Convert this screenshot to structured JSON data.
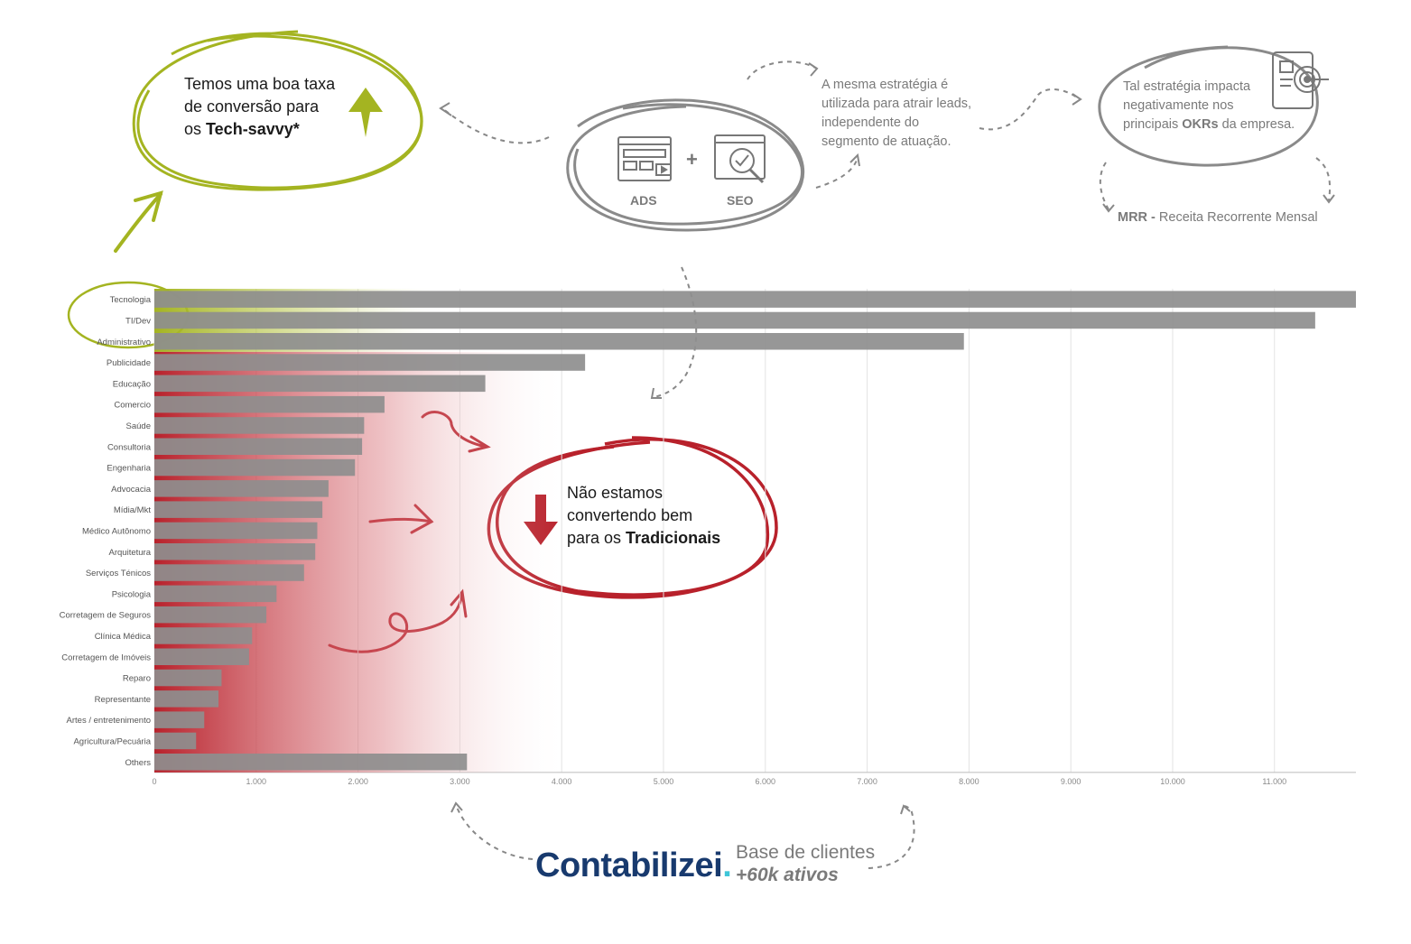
{
  "annotations": {
    "tech_note": {
      "line1": "Temos uma boa taxa",
      "line2": "de conversão para",
      "line3_prefix": "os ",
      "line3_bold": "Tech-savvy*"
    },
    "trad_note": {
      "line1": "Não estamos",
      "line2": "convertendo bem",
      "line3_prefix": "para os ",
      "line3_bold": "Tradicionais"
    },
    "strategy_note": {
      "line1": "A mesma estratégia é",
      "line2": "utilizada para atrair leads,",
      "line3": "independente do",
      "line4": "segmento de atuação."
    },
    "okr_note": {
      "line1": "Tal estratégia impacta",
      "line2": "negativamente nos",
      "line3_prefix": "principais ",
      "line3_bold": "OKRs",
      "line3_suffix": " da empresa."
    },
    "mrr": {
      "bold": "MRR -",
      "text": " Receita Recorrente Mensal"
    },
    "ads_label": "ADS",
    "seo_label": "SEO",
    "plus": "+"
  },
  "brand": {
    "name": "Contabilizei",
    "dot": ".",
    "tagline1": "Base de clientes",
    "tagline2": "+60k ativos"
  },
  "colors": {
    "green": "#a4b421",
    "red": "#b8212b",
    "bar": "#8e8e8e",
    "brand": "#183a6e",
    "brand_dot": "#3ec6d9",
    "note_gray": "#7a7a7a"
  },
  "icons": [
    "ads-monitor-icon",
    "seo-magnifier-icon",
    "okr-target-icon",
    "arrow-up-icon",
    "arrow-down-icon"
  ],
  "chart_data": {
    "type": "bar",
    "orientation": "horizontal",
    "categories": [
      "Tecnologia",
      "TI/Dev",
      "Administrativo",
      "Publicidade",
      "Educação",
      "Comercio",
      "Saúde",
      "Consultoria",
      "Engenharia",
      "Advocacia",
      "Mídia/Mkt",
      "Médico Autônomo",
      "Arquitetura",
      "Serviços Ténicos",
      "Psicologia",
      "Corretagem de Seguros",
      "Clínica Médica",
      "Corretagem de Imóveis",
      "Reparo",
      "Representante",
      "Artes / entretenimento",
      "Agricultura/Pecuária",
      "Others"
    ],
    "values": [
      11800,
      11400,
      7950,
      4230,
      3250,
      2260,
      2060,
      2040,
      1970,
      1710,
      1650,
      1600,
      1580,
      1470,
      1200,
      1100,
      960,
      930,
      660,
      630,
      490,
      410,
      3070
    ],
    "x_ticks": [
      "0",
      "1.000",
      "2.000",
      "3.000",
      "4.000",
      "5.000",
      "6.000",
      "7.000",
      "8.000",
      "9.000",
      "10.000",
      "11.000"
    ],
    "xlim": [
      0,
      11800
    ],
    "grid": true,
    "highlight_green": [
      "Tecnologia",
      "TI/Dev",
      "Administrativo"
    ],
    "highlight_red": [
      "Publicidade",
      "Educação",
      "Comercio",
      "Saúde",
      "Consultoria",
      "Engenharia",
      "Advocacia",
      "Mídia/Mkt",
      "Médico Autônomo",
      "Arquitetura",
      "Serviços Ténicos",
      "Psicologia",
      "Corretagem de Seguros",
      "Clínica Médica",
      "Corretagem de Imóveis",
      "Reparo",
      "Representante",
      "Artes / entretenimento",
      "Agricultura/Pecuária",
      "Others"
    ]
  }
}
